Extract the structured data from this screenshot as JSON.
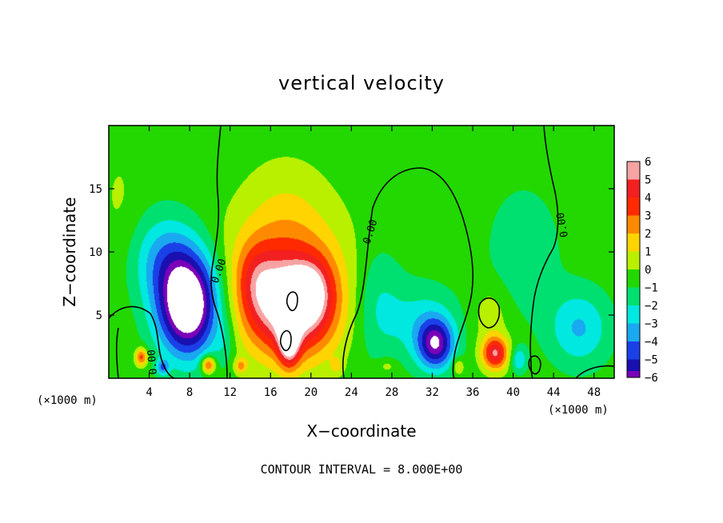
{
  "chart_data": {
    "type": "heatmap",
    "title": "vertical velocity",
    "xlabel": "X−coordinate",
    "ylabel": "Z−coordinate",
    "x_unit_left": "(×1000 m)",
    "x_unit_right": "(×1000 m)",
    "xlim": [
      0,
      50
    ],
    "ylim": [
      0,
      20
    ],
    "x_ticks": [
      4,
      8,
      12,
      16,
      20,
      24,
      28,
      32,
      36,
      40,
      44,
      48
    ],
    "y_ticks": [
      5,
      10,
      15
    ],
    "footer": "CONTOUR INTERVAL = 8.000E+00",
    "contour_labels": [
      "0.00",
      "0.00",
      "0.00",
      "0.00"
    ],
    "colorbar": {
      "levels": [
        6,
        5,
        4,
        3,
        2,
        1,
        0,
        -1,
        -2,
        -3,
        -4,
        -5,
        -6
      ],
      "colors": [
        "#f7a3a3",
        "#f22020",
        "#ff2a00",
        "#ff8a00",
        "#ffd400",
        "#b8f000",
        "#22d800",
        "#00e070",
        "#00e8e0",
        "#1aa8f0",
        "#1a40e8",
        "#1a10b0",
        "#7a00b8"
      ]
    },
    "features": [
      {
        "x": 7.8,
        "z": 5.8,
        "w": -8.5,
        "sx": 3.0,
        "sz": 4.0
      },
      {
        "x": 5.5,
        "z": 9.5,
        "w": -2.6,
        "sx": 3.2,
        "sz": 3.5
      },
      {
        "x": 3.2,
        "z": 1.7,
        "w": 4.0,
        "sx": 0.6,
        "sz": 0.7
      },
      {
        "x": 5.3,
        "z": 0.9,
        "w": -3.0,
        "sx": 0.6,
        "sz": 0.6
      },
      {
        "x": 9.8,
        "z": 1.1,
        "w": 4.5,
        "sx": 0.7,
        "sz": 0.7
      },
      {
        "x": 18.0,
        "z": 5.5,
        "w": 6.5,
        "sx": 4.5,
        "sz": 4.0
      },
      {
        "x": 17.5,
        "z": 9.0,
        "w": 2.5,
        "sx": 6.0,
        "sz": 5.0
      },
      {
        "x": 18.5,
        "z": 6.5,
        "w": 4.5,
        "sx": 1.5,
        "sz": 1.5
      },
      {
        "x": 17.8,
        "z": 3.0,
        "w": 5.0,
        "sx": 1.0,
        "sz": 2.0
      },
      {
        "x": 20.2,
        "z": 7.0,
        "w": 2.0,
        "sx": 1.8,
        "sz": 2.5
      },
      {
        "x": 14.5,
        "z": 8.0,
        "w": 1.8,
        "sx": 2.0,
        "sz": 3.0
      },
      {
        "x": 17.5,
        "z": 14.0,
        "w": 0.8,
        "sx": 4.0,
        "sz": 4.0
      },
      {
        "x": 26.5,
        "z": 6.0,
        "w": -1.6,
        "sx": 2.5,
        "sz": 4.5
      },
      {
        "x": 32.3,
        "z": 2.7,
        "w": -5.5,
        "sx": 1.8,
        "sz": 2.0
      },
      {
        "x": 31.0,
        "z": 4.5,
        "w": -1.8,
        "sx": 3.5,
        "sz": 3.0
      },
      {
        "x": 38.2,
        "z": 2.0,
        "w": 5.5,
        "sx": 1.3,
        "sz": 1.3
      },
      {
        "x": 37.8,
        "z": 5.0,
        "w": 1.2,
        "sx": 1.8,
        "sz": 2.5
      },
      {
        "x": 40.5,
        "z": 1.5,
        "w": -2.5,
        "sx": 0.8,
        "sz": 1.0
      },
      {
        "x": 41.0,
        "z": 10.0,
        "w": -1.3,
        "sx": 3.5,
        "sz": 5.0
      },
      {
        "x": 46.5,
        "z": 4.0,
        "w": -2.6,
        "sx": 3.0,
        "sz": 3.0
      },
      {
        "x": 13.0,
        "z": 1.0,
        "w": 2.5,
        "sx": 0.6,
        "sz": 0.6
      },
      {
        "x": 22.5,
        "z": 1.0,
        "w": 1.5,
        "sx": 0.6,
        "sz": 0.6
      },
      {
        "x": 34.5,
        "z": 1.0,
        "w": 2.0,
        "sx": 0.6,
        "sz": 0.7
      },
      {
        "x": 27.5,
        "z": 1.0,
        "w": 1.2,
        "sx": 1.0,
        "sz": 0.6
      },
      {
        "x": 11.5,
        "z": 3.0,
        "w": -1.0,
        "sx": 1.0,
        "sz": 2.0
      },
      {
        "x": 1.0,
        "z": 14.0,
        "w": 0.6,
        "sx": 2.0,
        "sz": 5.0
      }
    ]
  }
}
